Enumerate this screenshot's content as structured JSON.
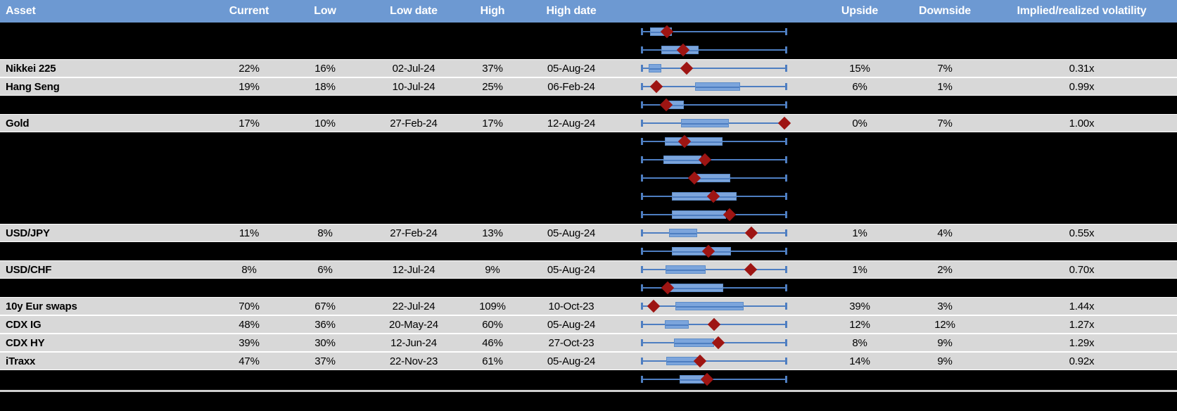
{
  "colors": {
    "header_bg": "#6d99d2",
    "data_row_bg": "#d8d8d8",
    "whisker_blue": "#4e7ec1",
    "box_blue": "#7ca5dc",
    "marker_red": "#9e1513"
  },
  "chart_data": {
    "type": "table",
    "columns": [
      "Asset",
      "Current",
      "Low",
      "Low date",
      "High",
      "High date",
      "",
      "Upside",
      "Downside",
      "Implied/realized volatility"
    ],
    "embedded_plot": {
      "type": "boxplot",
      "orientation": "horizontal",
      "whisker_range_normalized": [
        0,
        1
      ],
      "marker_shape": "diamond"
    },
    "rows": [
      {
        "redacted": true,
        "range_plot": {
          "box": [
            0.054,
            0.206
          ],
          "current": 0.172
        }
      },
      {
        "redacted": true,
        "range_plot": {
          "box": [
            0.132,
            0.392
          ],
          "current": 0.284
        }
      },
      {
        "redacted": false,
        "asset": "Nikkei 225",
        "current": "22%",
        "low": "16%",
        "low_date": "02-Jul-24",
        "high": "37%",
        "high_date": "05-Aug-24",
        "upside": "15%",
        "downside": "7%",
        "vol": "0.31x",
        "range_plot": {
          "box": [
            0.044,
            0.132
          ],
          "current": 0.309
        }
      },
      {
        "redacted": false,
        "asset": "Hang Seng",
        "current": "19%",
        "low": "18%",
        "low_date": "10-Jul-24",
        "high": "25%",
        "high_date": "06-Feb-24",
        "upside": "6%",
        "downside": "1%",
        "vol": "0.99x",
        "range_plot": {
          "box": [
            0.368,
            0.681
          ],
          "current": 0.098
        }
      },
      {
        "redacted": true,
        "range_plot": {
          "box": [
            0.172,
            0.289
          ],
          "current": 0.167
        }
      },
      {
        "redacted": false,
        "asset": "Gold",
        "current": "17%",
        "low": "10%",
        "low_date": "27-Feb-24",
        "high": "17%",
        "high_date": "12-Aug-24",
        "upside": "0%",
        "downside": "7%",
        "vol": "1.00x",
        "range_plot": {
          "box": [
            0.27,
            0.603
          ],
          "current": 0.99
        }
      },
      {
        "redacted": true,
        "range_plot": {
          "box": [
            0.157,
            0.559
          ],
          "current": 0.294
        }
      },
      {
        "redacted": true,
        "range_plot": {
          "box": [
            0.147,
            0.412
          ],
          "current": 0.436
        }
      },
      {
        "redacted": true,
        "range_plot": {
          "box": [
            0.363,
            0.613
          ],
          "current": 0.363
        }
      },
      {
        "redacted": true,
        "range_plot": {
          "box": [
            0.206,
            0.657
          ],
          "current": 0.495
        }
      },
      {
        "redacted": true,
        "range_plot": {
          "box": [
            0.206,
            0.583
          ],
          "current": 0.608
        }
      },
      {
        "redacted": false,
        "asset": "USD/JPY",
        "current": "11%",
        "low": "8%",
        "low_date": "27-Feb-24",
        "high": "13%",
        "high_date": "05-Aug-24",
        "upside": "1%",
        "downside": "4%",
        "vol": "0.55x",
        "range_plot": {
          "box": [
            0.186,
            0.382
          ],
          "current": 0.76
        }
      },
      {
        "redacted": true,
        "range_plot": {
          "box": [
            0.206,
            0.618
          ],
          "current": 0.461
        }
      },
      {
        "redacted": false,
        "asset": "USD/CHF",
        "current": "8%",
        "low": "6%",
        "low_date": "12-Jul-24",
        "high": "9%",
        "high_date": "05-Aug-24",
        "upside": "1%",
        "downside": "2%",
        "vol": "0.70x",
        "range_plot": {
          "box": [
            0.162,
            0.441
          ],
          "current": 0.755
        }
      },
      {
        "redacted": true,
        "range_plot": {
          "box": [
            0.169,
            0.564
          ],
          "current": 0.176
        }
      },
      {
        "redacted": false,
        "asset": "10y Eur swaps",
        "current": "70%",
        "low": "67%",
        "low_date": "22-Jul-24",
        "high": "109%",
        "high_date": "10-Oct-23",
        "upside": "39%",
        "downside": "3%",
        "vol": "1.44x",
        "range_plot": {
          "box": [
            0.23,
            0.706
          ],
          "current": 0.078
        }
      },
      {
        "redacted": false,
        "asset": "CDX IG",
        "current": "48%",
        "low": "36%",
        "low_date": "20-May-24",
        "high": "60%",
        "high_date": "05-Aug-24",
        "upside": "12%",
        "downside": "12%",
        "vol": "1.27x",
        "range_plot": {
          "box": [
            0.157,
            0.324
          ],
          "current": 0.5
        }
      },
      {
        "redacted": false,
        "asset": "CDX HY",
        "current": "39%",
        "low": "30%",
        "low_date": "12-Jun-24",
        "high": "46%",
        "high_date": "27-Oct-23",
        "upside": "8%",
        "downside": "9%",
        "vol": "1.29x",
        "range_plot": {
          "box": [
            0.221,
            0.5
          ],
          "current": 0.529
        }
      },
      {
        "redacted": false,
        "asset": "iTraxx",
        "current": "47%",
        "low": "37%",
        "low_date": "22-Nov-23",
        "high": "61%",
        "high_date": "05-Aug-24",
        "upside": "14%",
        "downside": "9%",
        "vol": "0.92x",
        "range_plot": {
          "box": [
            0.169,
            0.387
          ],
          "current": 0.402
        }
      },
      {
        "redacted": true,
        "range_plot": {
          "box": [
            0.26,
            0.431
          ],
          "current": 0.451
        }
      }
    ]
  }
}
